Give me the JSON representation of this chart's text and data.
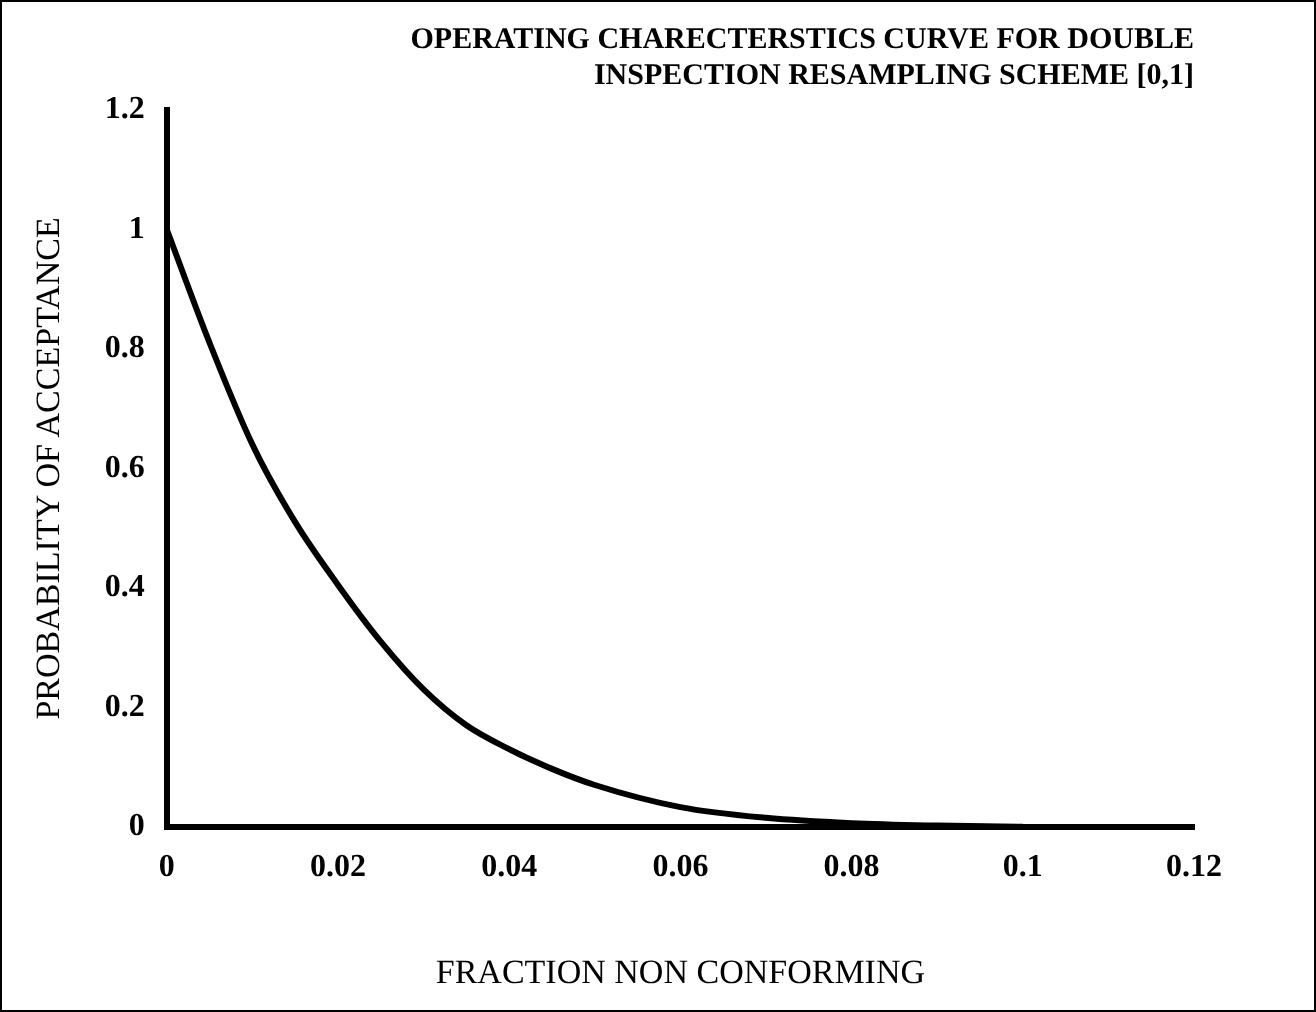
{
  "chart_data": {
    "type": "line",
    "title": [
      "OPERATING CHARECTERSTICS CURVE FOR DOUBLE",
      "INSPECTION RESAMPLING SCHEME [0,1]"
    ],
    "xlabel": "FRACTION NON CONFORMING",
    "ylabel": "PROBABILITY OF ACCEPTANCE",
    "series": [
      {
        "color": "#000000",
        "x": [
          0,
          0.005,
          0.01,
          0.015,
          0.02,
          0.025,
          0.03,
          0.035,
          0.04,
          0.045,
          0.05,
          0.06,
          0.07,
          0.08,
          0.09,
          0.1
        ],
        "values": [
          1,
          0.81,
          0.64,
          0.51,
          0.405,
          0.31,
          0.23,
          0.17,
          0.13,
          0.097,
          0.07,
          0.033,
          0.015,
          0.006,
          0.002,
          0
        ]
      }
    ],
    "xlim": [
      0,
      0.12
    ],
    "xticks": [
      0,
      0.02,
      0.04,
      0.06,
      0.08,
      0.1,
      0.12
    ],
    "ylim": [
      0,
      1.2
    ],
    "yticks": [
      0,
      0.2,
      0.4,
      0.6,
      0.8,
      1,
      1.2
    ],
    "grid": false,
    "legend": false,
    "marker": "none",
    "line_style": "solid"
  }
}
